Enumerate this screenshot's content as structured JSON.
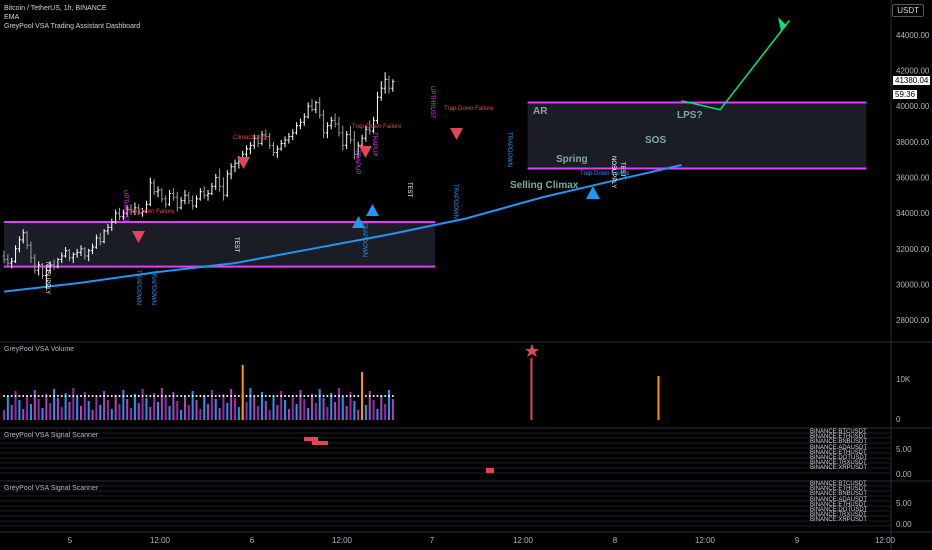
{
  "header": {
    "symbol_line": "Bitcoin / TetherUS, 1h, BINANCE",
    "indicators": [
      "EMA",
      "GreyPool VSA Trading Assistant Dashboard"
    ],
    "currency_badge": "USDT"
  },
  "price_axis": {
    "ticks": [
      "44000.00",
      "42000.00",
      "40000.00",
      "38000.00",
      "36000.00",
      "34000.00",
      "32000.00",
      "30000.00",
      "28000.00"
    ],
    "last_price": "41380.04",
    "countdown": "59:36"
  },
  "time_axis": {
    "ticks": [
      "5",
      "12:00",
      "6",
      "12:00",
      "7",
      "12:00",
      "8",
      "12:00",
      "9",
      "12:00"
    ]
  },
  "panes": {
    "volume": {
      "title": "GreyPool VSA Volume",
      "ticks": [
        "10K",
        "0"
      ]
    },
    "scanner1": {
      "title": "GreyPool VSA Signal Scanner",
      "ticks": [
        "5.00",
        "0.00"
      ],
      "symbols": [
        "BINANCE:BTCUSDT",
        "BINANCE:ETHUSDT",
        "BINANCE:BNBUSDT",
        "BINANCE:ADAUSDT",
        "BINANCE:ETHUSDT",
        "BINANCE:DOTUSDT",
        "BINANCE:TRXUSDT",
        "BINANCE:XRPUSDT"
      ]
    },
    "scanner2": {
      "title": "GreyPool VSA Signal Scanner",
      "ticks": [
        "5.00",
        "0.00"
      ],
      "symbols": [
        "BINANCE:BTCUSDT",
        "BINANCE:ETHUSDT",
        "BINANCE:BNBUSDT",
        "BINANCE:ADAUSDT",
        "BINANCE:ETHUSDT",
        "BINANCE:DOTUSDT",
        "BINANCE:TRXUSDT",
        "BINANCE:XRPUSDT"
      ]
    }
  },
  "annotations": {
    "ar": "AR",
    "selling_climax": "Selling Climax",
    "spring": "Spring",
    "sos": "SOS",
    "lps": "LPS?",
    "climactic_up": "Climactic Up",
    "trap_down_failure": "Trap-Down Failure",
    "upthrust": "UPTHRUST",
    "trapup": "TRAPUP",
    "trapdown": "TRAPDOWN",
    "nosupply": "NOSUPPLY",
    "test": "TEST"
  },
  "colors": {
    "up": "#ffffff",
    "down": "#9e9e9e",
    "ema": "#2196f3",
    "range_box": "#e040fb",
    "arrow": "#00e676",
    "bear_marker": "#e0455a",
    "bull_marker": "#2196f3"
  },
  "chart_data": {
    "type": "candlestick",
    "y_range": [
      27000,
      45500
    ],
    "candles": [
      [
        31600,
        31900,
        31200,
        31400
      ],
      [
        31400,
        31700,
        31000,
        31200
      ],
      [
        31200,
        31500,
        30900,
        31300
      ],
      [
        31300,
        32200,
        31200,
        32000
      ],
      [
        32000,
        32700,
        31800,
        32500
      ],
      [
        32500,
        33100,
        32300,
        32900
      ],
      [
        32900,
        33000,
        32000,
        32200
      ],
      [
        32200,
        32400,
        31200,
        31500
      ],
      [
        31500,
        31700,
        30600,
        30800
      ],
      [
        30800,
        31300,
        30500,
        31100
      ],
      [
        31100,
        31200,
        30300,
        30500
      ],
      [
        30500,
        31000,
        29800,
        30800
      ],
      [
        30800,
        31300,
        30600,
        31100
      ],
      [
        31100,
        31400,
        30800,
        31000
      ],
      [
        31000,
        31500,
        30900,
        31400
      ],
      [
        31400,
        31800,
        31200,
        31600
      ],
      [
        31600,
        32100,
        31500,
        31900
      ],
      [
        31900,
        32000,
        31300,
        31500
      ],
      [
        31500,
        31800,
        31200,
        31700
      ],
      [
        31700,
        32000,
        31500,
        31800
      ],
      [
        31800,
        32200,
        31600,
        32000
      ],
      [
        32000,
        32100,
        31400,
        31600
      ],
      [
        31600,
        32000,
        31300,
        31900
      ],
      [
        31900,
        32300,
        31700,
        32100
      ],
      [
        32100,
        32800,
        32000,
        32600
      ],
      [
        32600,
        32900,
        32200,
        32400
      ],
      [
        32400,
        33100,
        32300,
        33000
      ],
      [
        33000,
        33400,
        32800,
        33200
      ],
      [
        33200,
        33700,
        33000,
        33500
      ],
      [
        33500,
        34200,
        33400,
        34000
      ],
      [
        34000,
        34300,
        33600,
        33800
      ],
      [
        33800,
        34200,
        33600,
        34000
      ],
      [
        34000,
        34400,
        33800,
        34200
      ],
      [
        34200,
        34500,
        33900,
        34100
      ],
      [
        34100,
        34600,
        33900,
        34300
      ],
      [
        34300,
        34500,
        33900,
        34000
      ],
      [
        34000,
        34300,
        33800,
        34100
      ],
      [
        34100,
        34700,
        34000,
        34500
      ],
      [
        34500,
        36000,
        34400,
        35700
      ],
      [
        35700,
        35900,
        35000,
        35200
      ],
      [
        35200,
        35500,
        34900,
        35300
      ],
      [
        35300,
        35400,
        34600,
        34800
      ],
      [
        34800,
        35000,
        34300,
        34500
      ],
      [
        34500,
        35300,
        34400,
        35100
      ],
      [
        35100,
        35400,
        34700,
        34900
      ],
      [
        34900,
        35200,
        34100,
        34300
      ],
      [
        34300,
        34900,
        34200,
        34700
      ],
      [
        34700,
        35300,
        34500,
        35000
      ],
      [
        35000,
        35200,
        34500,
        34700
      ],
      [
        34700,
        35000,
        34200,
        34400
      ],
      [
        34400,
        35000,
        34300,
        34800
      ],
      [
        34800,
        35400,
        34700,
        35200
      ],
      [
        35200,
        35500,
        34800,
        35000
      ],
      [
        35000,
        35300,
        34700,
        35100
      ],
      [
        35100,
        35700,
        35000,
        35500
      ],
      [
        35500,
        36200,
        35300,
        36000
      ],
      [
        36000,
        36500,
        35200,
        35500
      ],
      [
        35500,
        36000,
        34700,
        35000
      ],
      [
        35000,
        36400,
        34900,
        36200
      ],
      [
        36200,
        36800,
        35900,
        36600
      ],
      [
        36600,
        37000,
        36300,
        36800
      ],
      [
        36800,
        37200,
        36500,
        36900
      ],
      [
        36900,
        37500,
        36700,
        37300
      ],
      [
        37300,
        37800,
        37000,
        37600
      ],
      [
        37600,
        38000,
        37300,
        37800
      ],
      [
        37800,
        38400,
        37600,
        38200
      ],
      [
        38200,
        38400,
        37700,
        37900
      ],
      [
        37900,
        38600,
        37800,
        38400
      ],
      [
        38400,
        38700,
        38100,
        38300
      ],
      [
        38300,
        38500,
        37600,
        37800
      ],
      [
        37800,
        38000,
        37200,
        37400
      ],
      [
        37400,
        37800,
        37100,
        37600
      ],
      [
        37600,
        38100,
        37500,
        37900
      ],
      [
        37900,
        38300,
        37700,
        38100
      ],
      [
        38100,
        38500,
        37900,
        38300
      ],
      [
        38300,
        38700,
        38100,
        38500
      ],
      [
        38500,
        39100,
        38400,
        38900
      ],
      [
        38900,
        39300,
        38700,
        39100
      ],
      [
        39100,
        39600,
        38900,
        39400
      ],
      [
        39400,
        40200,
        39300,
        40000
      ],
      [
        40000,
        40400,
        39700,
        39800
      ],
      [
        39800,
        40300,
        39600,
        40200
      ],
      [
        40200,
        40500,
        39300,
        39500
      ],
      [
        39500,
        39800,
        38200,
        38500
      ],
      [
        38500,
        39100,
        38200,
        38900
      ],
      [
        38900,
        39400,
        38700,
        39200
      ],
      [
        39200,
        39600,
        38800,
        39000
      ],
      [
        39000,
        39400,
        38300,
        38500
      ],
      [
        38500,
        38900,
        37500,
        37800
      ],
      [
        37800,
        38600,
        37600,
        38400
      ],
      [
        38400,
        38900,
        37900,
        38100
      ],
      [
        38100,
        38600,
        37000,
        37300
      ],
      [
        37300,
        38000,
        37100,
        37800
      ],
      [
        37800,
        38400,
        37600,
        38200
      ],
      [
        38200,
        38900,
        38000,
        38700
      ],
      [
        38700,
        39200,
        38400,
        38600
      ],
      [
        38600,
        39400,
        38500,
        39200
      ],
      [
        39200,
        40800,
        39000,
        40500
      ],
      [
        40500,
        41400,
        40300,
        41000
      ],
      [
        41000,
        41900,
        40700,
        41500
      ],
      [
        41500,
        41700,
        40700,
        41000
      ],
      [
        41000,
        41500,
        40800,
        41380
      ]
    ],
    "ema": [
      [
        0,
        29600
      ],
      [
        20,
        30100
      ],
      [
        40,
        30700
      ],
      [
        60,
        31200
      ],
      [
        80,
        32000
      ],
      [
        100,
        32800
      ],
      [
        120,
        33700
      ],
      [
        140,
        34900
      ],
      [
        160,
        35900
      ],
      [
        176,
        36700
      ]
    ],
    "range_boxes": [
      {
        "x0": 0,
        "x1": 112,
        "top": 33500,
        "bottom": 31000
      },
      {
        "x0": 136,
        "x1": 224,
        "top": 40200,
        "bottom": 36500
      }
    ],
    "projection": [
      [
        176,
        40300
      ],
      [
        186,
        39800
      ],
      [
        204,
        44800
      ]
    ]
  }
}
